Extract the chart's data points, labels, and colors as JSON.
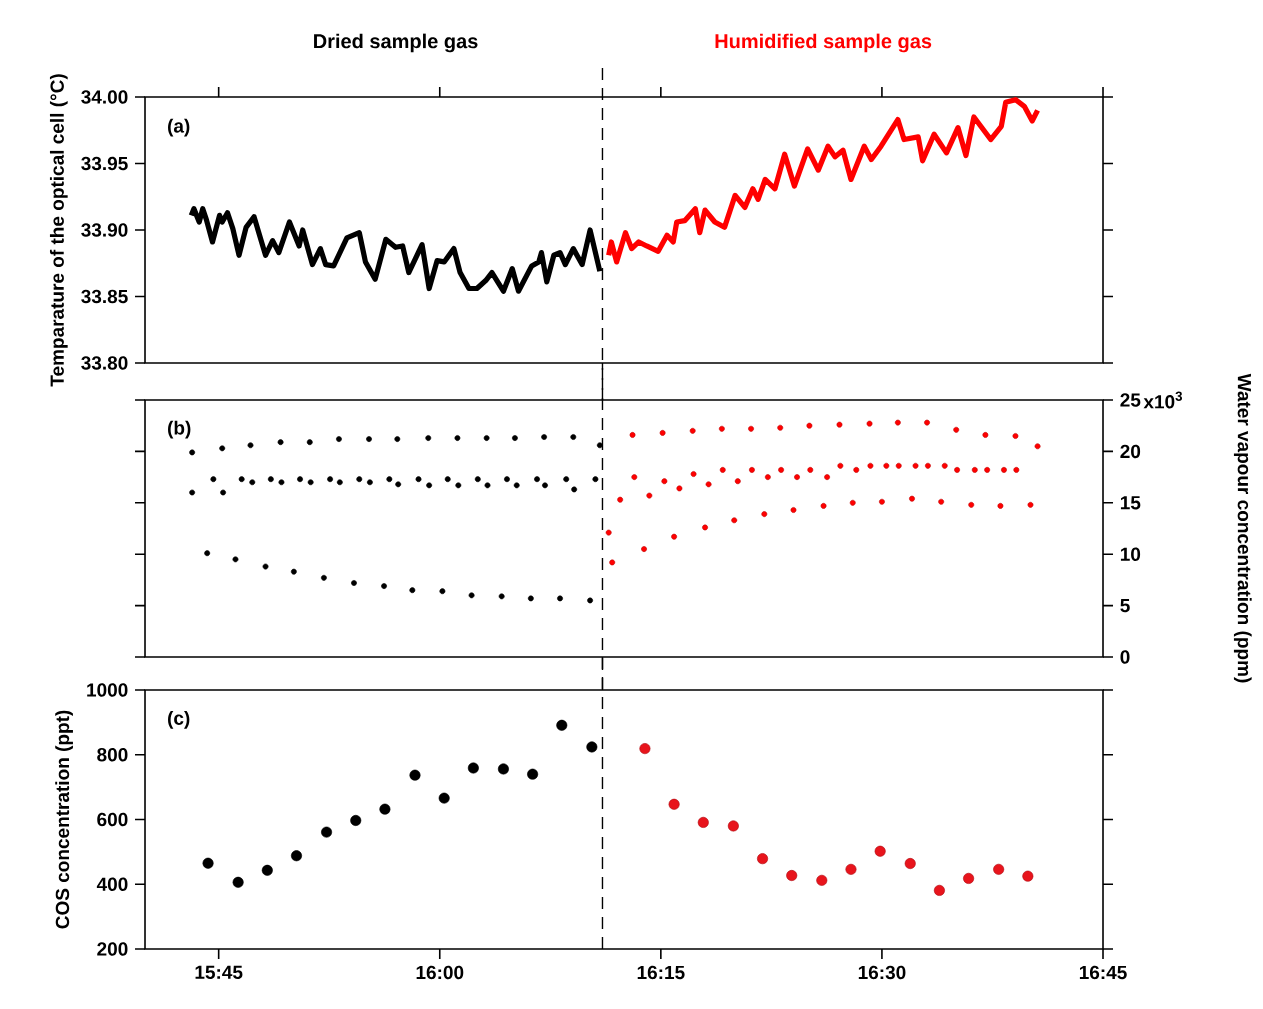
{
  "chart_data": [
    {
      "type": "line",
      "ylabel": "Temparature of the optical cell (°C)",
      "annotations": [
        "(a)"
      ],
      "xlim": [
        15.6667,
        16.75
      ],
      "xticks": [
        {
          "value": 15.75,
          "label": null
        },
        {
          "value": 16,
          "label": null
        },
        {
          "value": 16.25,
          "label": null
        },
        {
          "value": 16.5,
          "label": null
        },
        {
          "value": 16.75,
          "label": null
        }
      ],
      "ylim": [
        33.8,
        34.0
      ],
      "yticks": [
        {
          "value": 33.8,
          "label": "33.80"
        },
        {
          "value": 33.85,
          "label": "33.85"
        },
        {
          "value": 33.9,
          "label": "33.90"
        },
        {
          "value": 33.95,
          "label": "33.95"
        },
        {
          "value": 34.0,
          "label": "34.00"
        }
      ],
      "tick_labels": "y",
      "ref_lines": [
        {
          "axis": "x",
          "value": 16.184,
          "color": "#000000",
          "line_style": "dashed"
        }
      ],
      "series": [
        {
          "name": "Dried sample gas",
          "color": "#000000",
          "x": [
            15.719,
            15.722,
            15.728,
            15.732,
            15.736,
            15.743,
            15.751,
            15.754,
            15.76,
            15.766,
            15.773,
            15.781,
            15.79,
            15.803,
            15.811,
            15.818,
            15.83,
            15.841,
            15.845,
            15.856,
            15.865,
            15.871,
            15.88,
            15.895,
            15.909,
            15.916,
            15.927,
            15.939,
            15.95,
            15.958,
            15.965,
            15.98,
            15.988,
            15.997,
            16.005,
            16.016,
            16.023,
            16.033,
            16.042,
            16.052,
            16.059,
            16.072,
            16.082,
            16.089,
            16.104,
            16.112,
            16.115,
            16.121,
            16.129,
            16.136,
            16.142,
            16.151,
            16.161,
            16.17,
            16.181
          ],
          "values": [
            33.911,
            33.916,
            33.906,
            33.916,
            33.908,
            33.891,
            33.911,
            33.906,
            33.913,
            33.901,
            33.881,
            33.902,
            33.91,
            33.881,
            33.892,
            33.883,
            33.906,
            33.888,
            33.9,
            33.874,
            33.886,
            33.874,
            33.873,
            33.894,
            33.898,
            33.876,
            33.863,
            33.893,
            33.887,
            33.888,
            33.868,
            33.889,
            33.856,
            33.877,
            33.876,
            33.886,
            33.868,
            33.856,
            33.856,
            33.862,
            33.868,
            33.854,
            33.871,
            33.854,
            33.873,
            33.876,
            33.883,
            33.861,
            33.881,
            33.883,
            33.874,
            33.886,
            33.874,
            33.9,
            33.869
          ]
        },
        {
          "name": "Humidified sample gas",
          "color": "#ff0000",
          "x": [
            16.191,
            16.194,
            16.2,
            16.21,
            16.217,
            16.225,
            16.234,
            16.247,
            16.257,
            16.264,
            16.268,
            16.277,
            16.289,
            16.294,
            16.3,
            16.311,
            16.322,
            16.334,
            16.345,
            16.354,
            16.36,
            16.368,
            16.379,
            16.39,
            16.401,
            16.416,
            16.428,
            16.439,
            16.447,
            16.456,
            16.465,
            16.48,
            16.488,
            16.499,
            16.518,
            16.525,
            16.541,
            16.546,
            16.559,
            16.573,
            16.586,
            16.595,
            16.604,
            16.623,
            16.635,
            16.64,
            16.651,
            16.661,
            16.67,
            16.676
          ],
          "values": [
            33.881,
            33.891,
            33.876,
            33.898,
            33.886,
            33.891,
            33.888,
            33.884,
            33.896,
            33.891,
            33.906,
            33.907,
            33.916,
            33.898,
            33.915,
            33.906,
            33.902,
            33.926,
            33.917,
            33.931,
            33.923,
            33.938,
            33.931,
            33.957,
            33.933,
            33.961,
            33.945,
            33.963,
            33.955,
            33.96,
            33.938,
            33.963,
            33.953,
            33.963,
            33.983,
            33.968,
            33.97,
            33.952,
            33.972,
            33.958,
            33.977,
            33.956,
            33.985,
            33.968,
            33.978,
            33.996,
            33.998,
            33.993,
            33.982,
            33.99
          ]
        }
      ]
    },
    {
      "type": "scatter",
      "y2label": "Water vapour concentration (ppm)",
      "annotations": [
        "(b)",
        "x10$^{3}$"
      ],
      "xlim": [
        15.6667,
        16.75
      ],
      "y2lim": [
        0,
        25
      ],
      "y2ticks": [
        0,
        5,
        10,
        15,
        20,
        25
      ],
      "tick_labels": "y",
      "marker": "circle",
      "ref_lines": [
        {
          "axis": "x",
          "value": 16.184,
          "color": "#000000",
          "line_style": "dashed"
        }
      ],
      "series": [
        {
          "color": "#000000",
          "axis": "y2",
          "x": [
            15.72,
            15.72,
            15.737,
            15.744,
            15.754,
            15.755,
            15.769,
            15.776,
            15.786,
            15.788,
            15.803,
            15.809,
            15.82,
            15.821,
            15.835,
            15.842,
            15.853,
            15.854,
            15.869,
            15.876,
            15.886,
            15.887,
            15.903,
            15.909,
            15.92,
            15.921,
            15.937,
            15.943,
            15.952,
            15.953,
            15.969,
            15.976,
            15.987,
            15.988,
            16.003,
            16.009,
            16.02,
            16.021,
            16.036,
            16.043,
            16.053,
            16.054,
            16.07,
            16.076,
            16.085,
            16.087,
            16.103,
            16.11,
            16.118,
            16.119,
            16.136,
            16.143,
            16.151,
            16.152,
            16.17,
            16.176,
            16.181
          ],
          "values": [
            19.9,
            16.0,
            10.1,
            17.3,
            20.3,
            16.0,
            9.5,
            17.3,
            20.6,
            17.0,
            8.8,
            17.3,
            20.9,
            17.0,
            8.3,
            17.3,
            20.9,
            17.0,
            7.7,
            17.3,
            21.2,
            17.0,
            7.2,
            17.3,
            21.2,
            17.0,
            6.9,
            17.3,
            21.2,
            16.8,
            6.5,
            17.3,
            21.3,
            16.7,
            6.4,
            17.3,
            21.3,
            16.7,
            6.0,
            17.3,
            21.3,
            16.7,
            5.9,
            17.3,
            21.3,
            16.7,
            5.7,
            17.3,
            21.4,
            16.7,
            5.7,
            17.3,
            21.4,
            16.3,
            5.5,
            17.3,
            20.6
          ]
        },
        {
          "color": "#ff0000",
          "axis": "y2",
          "x": [
            16.191,
            16.195,
            16.204,
            16.218,
            16.22,
            16.231,
            16.237,
            16.252,
            16.254,
            16.265,
            16.271,
            16.286,
            16.287,
            16.3,
            16.304,
            16.319,
            16.32,
            16.333,
            16.337,
            16.352,
            16.353,
            16.367,
            16.371,
            16.385,
            16.386,
            16.4,
            16.404,
            16.418,
            16.419,
            16.434,
            16.438,
            16.452,
            16.453,
            16.467,
            16.471,
            16.486,
            16.487,
            16.5,
            16.505,
            16.518,
            16.519,
            16.534,
            16.538,
            16.551,
            16.552,
            16.567,
            16.571,
            16.584,
            16.585,
            16.601,
            16.605,
            16.617,
            16.619,
            16.634,
            16.638,
            16.651,
            16.652,
            16.668,
            16.676
          ],
          "values": [
            12.1,
            9.2,
            15.3,
            21.6,
            17.5,
            10.5,
            15.7,
            21.8,
            17.1,
            11.7,
            16.4,
            22.0,
            17.8,
            12.6,
            16.8,
            22.2,
            18.2,
            13.3,
            17.1,
            22.2,
            18.2,
            13.9,
            17.5,
            22.3,
            18.2,
            14.3,
            17.5,
            22.5,
            18.2,
            14.7,
            17.5,
            22.6,
            18.6,
            15.0,
            18.2,
            22.7,
            18.6,
            15.1,
            18.6,
            22.8,
            18.6,
            15.4,
            18.6,
            22.8,
            18.6,
            15.1,
            18.6,
            22.1,
            18.2,
            14.8,
            18.2,
            21.6,
            18.2,
            14.7,
            18.2,
            21.5,
            18.2,
            14.8,
            20.5
          ]
        }
      ]
    },
    {
      "type": "scatter",
      "ylabel": "COS concentration (ppt)",
      "annotations": [
        "(c)"
      ],
      "xlim": [
        15.6667,
        16.75
      ],
      "xticks": [
        {
          "value": 15.75,
          "label": "15:45"
        },
        {
          "value": 16,
          "label": "16:00"
        },
        {
          "value": 16.25,
          "label": "16:15"
        },
        {
          "value": 16.5,
          "label": "16:30"
        },
        {
          "value": 16.75,
          "label": "16:45"
        }
      ],
      "ylim": [
        200,
        1000
      ],
      "yticks": [
        200,
        400,
        600,
        800,
        1000
      ],
      "marker": "circle",
      "ref_lines": [
        {
          "axis": "x",
          "value": 16.184,
          "color": "#000000",
          "line_style": "dashed"
        }
      ],
      "series": [
        {
          "color": "#000000",
          "x": [
            15.738,
            15.772,
            15.805,
            15.838,
            15.872,
            15.905,
            15.938,
            15.972,
            16.005,
            16.038,
            16.072,
            16.105,
            16.138,
            16.172
          ],
          "values": [
            465,
            406,
            443,
            488,
            561,
            597,
            632,
            737,
            666,
            759,
            756,
            740,
            891,
            824
          ]
        },
        {
          "color": "#e8141c",
          "x": [
            16.232,
            16.265,
            16.298,
            16.332,
            16.365,
            16.398,
            16.432,
            16.465,
            16.498,
            16.532,
            16.565,
            16.598,
            16.632,
            16.665
          ],
          "values": [
            819,
            647,
            591,
            580,
            479,
            427,
            412,
            446,
            502,
            464,
            381,
            418,
            446,
            425
          ]
        }
      ]
    }
  ]
}
